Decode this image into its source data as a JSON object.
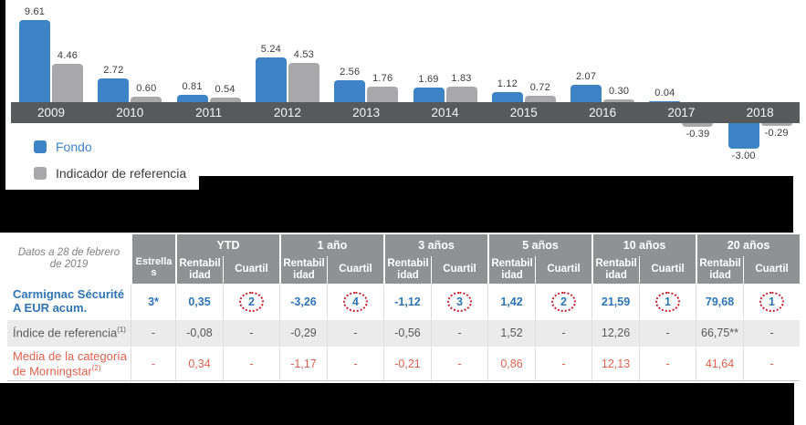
{
  "chart_data": {
    "type": "bar",
    "title": "",
    "categories": [
      "2009",
      "2010",
      "2011",
      "2012",
      "2013",
      "2014",
      "2015",
      "2016",
      "2017",
      "2018"
    ],
    "series": [
      {
        "name": "Fondo",
        "color": "#3E83C5",
        "values": [
          9.61,
          2.72,
          0.81,
          5.24,
          2.56,
          1.69,
          1.12,
          2.07,
          0.04,
          -3.0
        ]
      },
      {
        "name": "Indicador de referencia",
        "color": "#A8A8AA",
        "values": [
          4.46,
          0.6,
          0.54,
          4.53,
          1.76,
          1.83,
          0.72,
          0.3,
          -0.39,
          -0.29
        ]
      }
    ],
    "xlabel": "",
    "ylabel": "",
    "legend_position": "bottom-left",
    "grid": false,
    "axis_band_color": "#58595B",
    "value_labels": "shown above/below each bar, 2 decimals"
  },
  "chart": {
    "legend": [
      {
        "label": "Fondo",
        "color": "#3E83C5",
        "text_color": "#3E83C5"
      },
      {
        "label": "Indicador de referencia",
        "color": "#A8A8AA",
        "text_color": "#3A3A3A"
      }
    ]
  },
  "table": {
    "corner_label": "Datos a 28 de febrero de 2019",
    "col_estrellas": "Estrellas",
    "periods": [
      "YTD",
      "1 año",
      "3 años",
      "5 años",
      "10 años",
      "20 años"
    ],
    "sub_rent": "Rentabilidad",
    "sub_cuartil": "Cuartil",
    "circle_color": "#C81E2E",
    "rows": [
      {
        "label": "Carmignac Sécurité A EUR acum.",
        "sup": "",
        "estrellas": "3*",
        "color": "#2E75B6",
        "bold": true,
        "bg": "#FFFFFF",
        "circled": true,
        "cells": [
          [
            "0,35",
            "2"
          ],
          [
            "-3,26",
            "4"
          ],
          [
            "-1,12",
            "3"
          ],
          [
            "1,42",
            "2"
          ],
          [
            "21,59",
            "1"
          ],
          [
            "79,68",
            "1"
          ]
        ]
      },
      {
        "label": "Índice de referencia",
        "sup": "(1)",
        "estrellas": "-",
        "color": "#595959",
        "bold": false,
        "bg": "#EBEBEB",
        "circled": false,
        "cells": [
          [
            "-0,08",
            "-"
          ],
          [
            "-0,29",
            "-"
          ],
          [
            "-0,56",
            "-"
          ],
          [
            "1,52",
            "-"
          ],
          [
            "12,26",
            "-"
          ],
          [
            "66,75**",
            "-"
          ]
        ]
      },
      {
        "label": "Media de la categoría de Morningstar",
        "sup": "(2)",
        "estrellas": "-",
        "color": "#E0614E",
        "bold": false,
        "bg": "#FFFFFF",
        "circled": false,
        "cells": [
          [
            "0,34",
            "-"
          ],
          [
            "-1,17",
            "-"
          ],
          [
            "-0,21",
            "-"
          ],
          [
            "0,86",
            "-"
          ],
          [
            "12,13",
            "-"
          ],
          [
            "41,64",
            "-"
          ]
        ]
      }
    ]
  }
}
